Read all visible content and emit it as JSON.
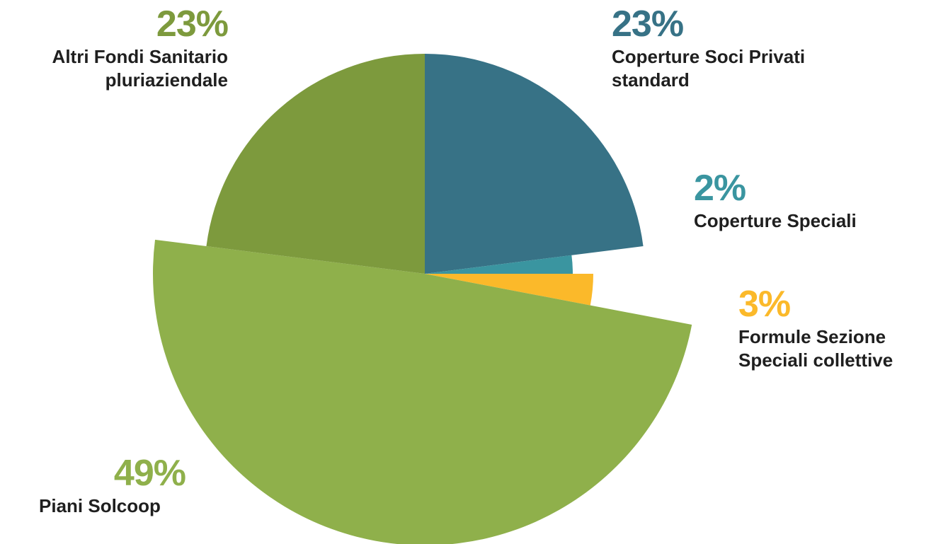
{
  "chart_data": {
    "type": "pie",
    "slices": [
      {
        "percent_label": "23%",
        "value": 23,
        "label_line1": "Coperture Soci Privati",
        "label_line2": "standard",
        "color": "#377286"
      },
      {
        "percent_label": "2%",
        "value": 2,
        "label_line1": "Coperture Speciali",
        "label_line2": "",
        "color": "#3a95a0"
      },
      {
        "percent_label": "3%",
        "value": 3,
        "label_line1": "Formule Sezione",
        "label_line2": "Speciali collettive",
        "color": "#fbb92a"
      },
      {
        "percent_label": "49%",
        "value": 49,
        "label_line1": "Piani Solcoop",
        "label_line2": "",
        "color": "#8fb04b"
      },
      {
        "percent_label": "23%",
        "value": 23,
        "label_line1": "Altri Fondi Sanitario",
        "label_line2": "pluriaziendale",
        "color": "#7d9a3d"
      }
    ]
  }
}
